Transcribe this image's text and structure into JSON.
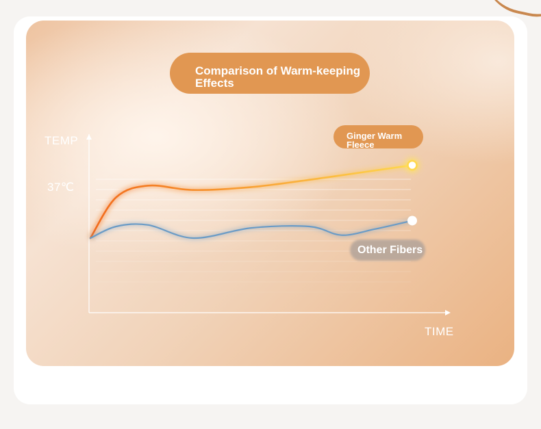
{
  "title": "Comparison of Warm-keeping\nEffects",
  "chart_data": {
    "type": "line",
    "title": "Comparison of Warm-keeping\nEffects",
    "ylabel": "TEMP",
    "xlabel": "TIME",
    "y_tick_labels": [
      "37℃"
    ],
    "grid": true,
    "legend": "top-right",
    "series": [
      {
        "name": "Ginger Warm\nFleece",
        "color": "#f26a1b",
        "color_end": "#ffd84d",
        "x": [
          0,
          0.08,
          0.18,
          0.32,
          0.5,
          0.68,
          0.84,
          1.0
        ],
        "values": [
          0.6,
          0.88,
          0.96,
          0.93,
          0.95,
          1.0,
          1.05,
          1.1
        ]
      },
      {
        "name": "Other Fibers",
        "color": "#6a9bc6",
        "x": [
          0,
          0.08,
          0.18,
          0.32,
          0.5,
          0.68,
          0.78,
          0.88,
          1.0
        ],
        "values": [
          0.6,
          0.68,
          0.69,
          0.6,
          0.67,
          0.68,
          0.62,
          0.66,
          0.72
        ]
      }
    ]
  }
}
